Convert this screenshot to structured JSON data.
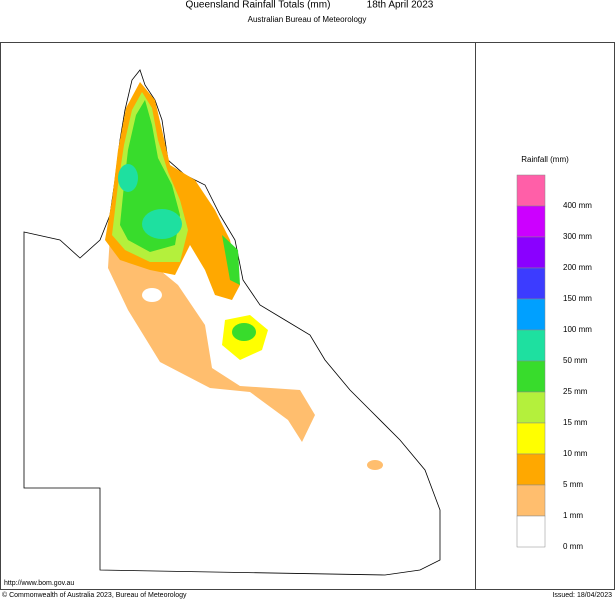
{
  "header": {
    "title": "Queensland Rainfall Totals (mm)",
    "date": "18th April 2023",
    "subtitle": "Australian Bureau of Meteorology"
  },
  "legend": {
    "title": "Rainfall (mm)",
    "swatches": [
      "#ff5fa8",
      "#cc00ff",
      "#8a00ff",
      "#3c3cff",
      "#00a0ff",
      "#1ee0a0",
      "#38dc2c",
      "#b4f03c",
      "#ffff00",
      "#ffa800",
      "#ffbe6e",
      "#ffffff"
    ],
    "labels": [
      "400 mm",
      "300 mm",
      "200 mm",
      "150 mm",
      "100 mm",
      "50 mm",
      "25 mm",
      "15 mm",
      "10 mm",
      "5 mm",
      "1 mm",
      "0 mm"
    ]
  },
  "footer": {
    "url": "http://www.bom.gov.au",
    "copyright": "© Commonwealth of Australia 2023, Bureau of Meteorology",
    "issued": "Issued: 18/04/2023"
  }
}
